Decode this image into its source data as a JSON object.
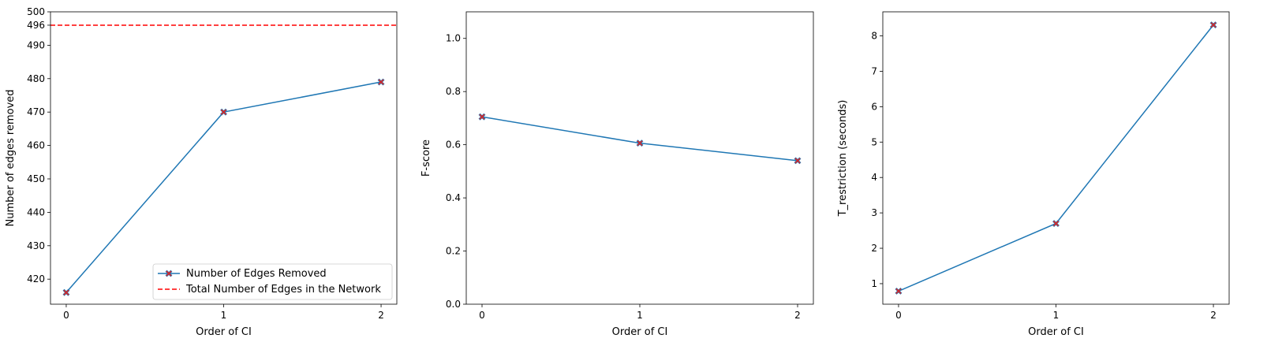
{
  "chart_data": [
    {
      "type": "line",
      "xlabel": "Order of CI",
      "ylabel": "Number of edges removed",
      "x": [
        0,
        1,
        2
      ],
      "xticks": [
        "0",
        "1",
        "2"
      ],
      "xlim": [
        -0.1,
        2.1
      ],
      "ylim": [
        412.5,
        500
      ],
      "yticks": [
        "420",
        "430",
        "440",
        "450",
        "460",
        "470",
        "480",
        "490",
        "500"
      ],
      "extra_ytick": "496",
      "series": [
        {
          "name": "Number of Edges Removed",
          "values": [
            416,
            470,
            479
          ],
          "color": "#1f77b4",
          "marker": "X",
          "marker_color": "#d62728"
        }
      ],
      "reference_line": {
        "name": "Total Number of Edges in the Network",
        "value": 496,
        "color": "#ff0000",
        "style": "dashed"
      },
      "legend": "bottom-right",
      "grid": false
    },
    {
      "type": "line",
      "xlabel": "Order of CI",
      "ylabel": "F-score",
      "x": [
        0,
        1,
        2
      ],
      "xticks": [
        "0",
        "1",
        "2"
      ],
      "xlim": [
        -0.1,
        2.1
      ],
      "ylim": [
        0.0,
        1.1
      ],
      "yticks": [
        "0.0",
        "0.2",
        "0.4",
        "0.6",
        "0.8",
        "1.0"
      ],
      "series": [
        {
          "values": [
            0.705,
            0.606,
            0.54
          ],
          "color": "#1f77b4",
          "marker": "X",
          "marker_color": "#d62728"
        }
      ],
      "grid": false
    },
    {
      "type": "line",
      "xlabel": "Order of CI",
      "ylabel": "T_restriction (seconds)",
      "x": [
        0,
        1,
        2
      ],
      "xticks": [
        "0",
        "1",
        "2"
      ],
      "xlim": [
        -0.1,
        2.1
      ],
      "ylim": [
        0.42,
        8.68
      ],
      "yticks": [
        "1",
        "2",
        "3",
        "4",
        "5",
        "6",
        "7",
        "8"
      ],
      "series": [
        {
          "values": [
            0.79,
            2.7,
            8.31
          ],
          "color": "#1f77b4",
          "marker": "X",
          "marker_color": "#d62728"
        }
      ],
      "grid": false
    }
  ]
}
